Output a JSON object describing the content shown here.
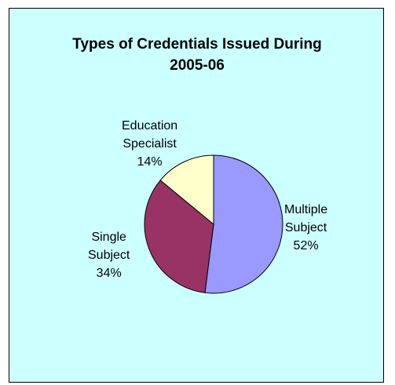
{
  "chart_data": {
    "type": "pie",
    "title": [
      "Types of Credentials Issued During",
      "2005-06"
    ],
    "slices": [
      {
        "label": [
          "Multiple",
          "Subject"
        ],
        "percent_label": "52%",
        "value": 52,
        "color": "#9999ff"
      },
      {
        "label": [
          "Single",
          "Subject"
        ],
        "percent_label": "34%",
        "value": 34,
        "color": "#993366"
      },
      {
        "label": [
          "Education",
          "Specialist"
        ],
        "percent_label": "14%",
        "value": 14,
        "color": "#ffffcc"
      }
    ],
    "start_angle_deg": 0,
    "direction": "clockwise",
    "background_color": "#ccffff",
    "slice_border_color": "#000000"
  }
}
